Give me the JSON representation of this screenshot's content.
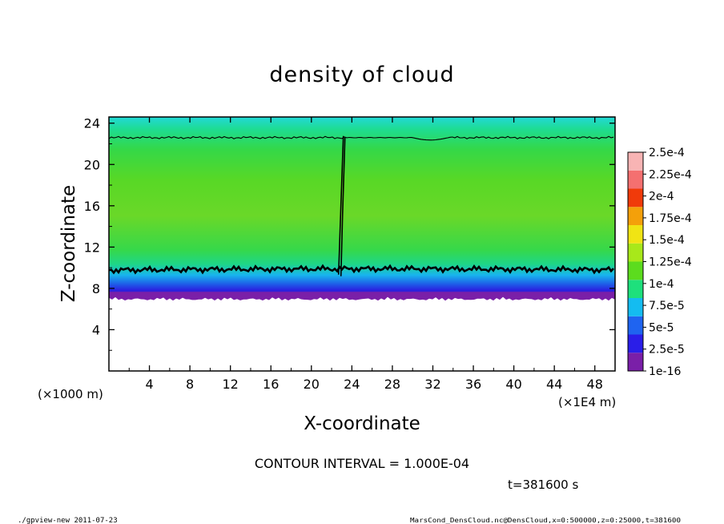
{
  "chart_data": {
    "type": "heatmap",
    "title": "density of cloud",
    "xlabel": "X-coordinate",
    "ylabel": "Z-coordinate",
    "x_unit": "(×1E4 m)",
    "y_unit": "(×1000 m)",
    "xlim": [
      0,
      50
    ],
    "ylim": [
      0,
      24.6
    ],
    "x_ticks": [
      4,
      8,
      12,
      16,
      20,
      24,
      28,
      32,
      36,
      40,
      44,
      48
    ],
    "y_ticks": [
      4,
      8,
      12,
      16,
      20,
      24
    ],
    "colorbar": {
      "labels": [
        "1e-16",
        "2.5e-5",
        "5e-5",
        "7.5e-5",
        "1e-4",
        "1.25e-4",
        "1.5e-4",
        "1.75e-4",
        "2e-4",
        "2.25e-4",
        "2.5e-4"
      ],
      "colors": [
        "#7a1fa8",
        "#2a1ee8",
        "#1f64f0",
        "#14bcf0",
        "#1ee07c",
        "#5cdc1e",
        "#a8e81a",
        "#f0e414",
        "#f4a00a",
        "#f03a0a",
        "#f47070",
        "#f8b4b4"
      ]
    },
    "contour_interval_text": "CONTOUR INTERVAL = 1.000E-04",
    "time_text": "t=381600 s",
    "cloud_bottom_z": 7.2,
    "cloud_top_z": 24.6,
    "contour_lower_z": 9.8,
    "contour_upper_z": 22.6,
    "plume_x": 23
  },
  "footer": {
    "left": "./gpview-new   2011-07-23",
    "right": "MarsCond_DensCloud.nc@DensCloud,x=0:500000,z=0:25000,t=381600"
  }
}
